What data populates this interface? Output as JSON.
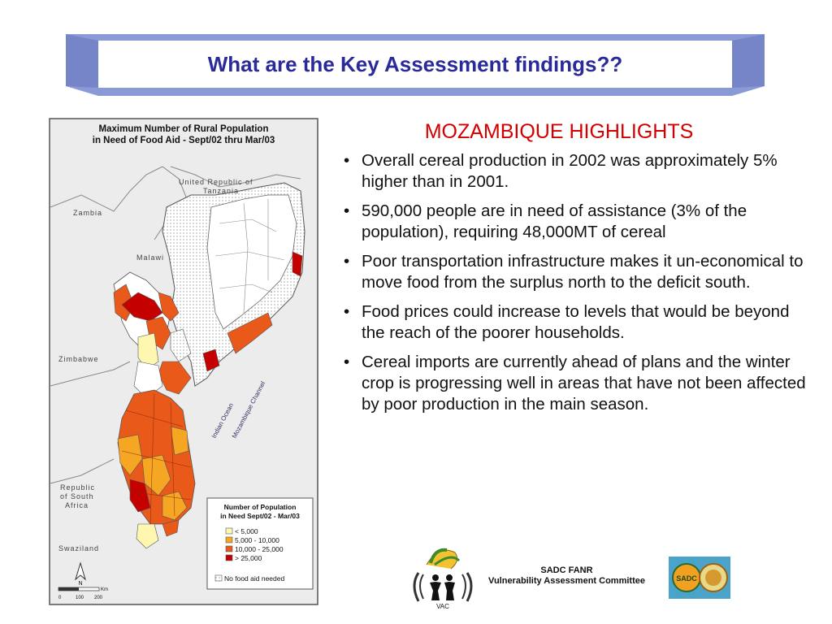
{
  "header": {
    "title": "What are the Key Assessment findings??"
  },
  "map": {
    "title_line1": "Maximum Number of Rural Population",
    "title_line2": "in Need of Food Aid - Sept/02 thru Mar/03",
    "countries": {
      "tanzania_line1": "United Republic of",
      "tanzania_line2": "Tanzania",
      "zambia": "Zambia",
      "malawi": "Malawi",
      "zimbabwe": "Zimbabwe",
      "south_africa_line1": "Republic",
      "south_africa_line2": "of South",
      "south_africa_line3": "Africa",
      "swaziland": "Swaziland"
    },
    "sea_labels": {
      "indian_ocean": "Indian Ocean",
      "channel": "Mozambique Channel"
    },
    "legend": {
      "title_line1": "Number of Population",
      "title_line2": "in Need Sept/02 - Mar/03",
      "items": [
        {
          "label": "< 5,000",
          "color": "#fff6b0"
        },
        {
          "label": "5,000 - 10,000",
          "color": "#f5a623"
        },
        {
          "label": "10,000 - 25,000",
          "color": "#e8591a"
        },
        {
          "label": "> 25,000",
          "color": "#c40000"
        }
      ],
      "no_aid_label": "No food aid needed"
    },
    "north_label": "N",
    "scale": {
      "t0": "0",
      "t1": "100",
      "t2": "200",
      "unit": "Km"
    }
  },
  "content": {
    "subtitle": "MOZAMBIQUE HIGHLIGHTS",
    "bullet_symbol": "•",
    "bullets": [
      "Overall cereal production in 2002 was approximately 5% higher than in 2001.",
      "590,000 people are in need of assistance (3% of the population), requiring 48,000MT of cereal",
      "Poor transportation infrastructure makes it un-economical to move food from the surplus north to the deficit south.",
      "Food prices could increase to levels that would be beyond the reach of the poorer households.",
      "Cereal imports are currently ahead of plans and the winter crop is progressing well in areas that have not been affected by poor production in the main season."
    ]
  },
  "footer": {
    "org_line1": "SADC FANR",
    "org_line2": "Vulnerability Assessment Committee",
    "vac_logo_text": "VAC",
    "sadc_logo_text": "SADC"
  },
  "colors": {
    "banner": "#8a9ad6",
    "title": "#2a2a9a",
    "subtitle": "#d40000"
  }
}
